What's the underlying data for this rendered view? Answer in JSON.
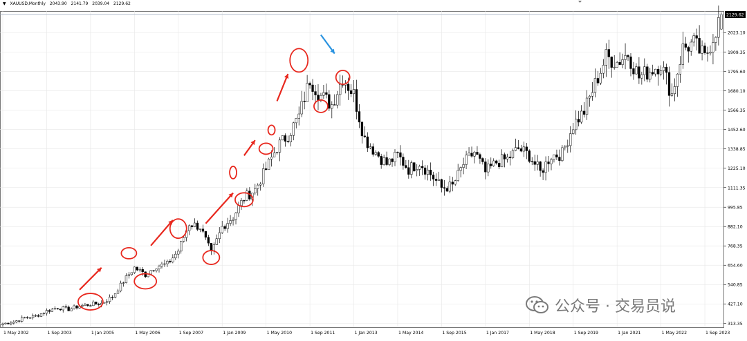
{
  "chart_data": {
    "type": "candlestick",
    "symbol_line": {
      "symbol": "XAUUSD,Monthly",
      "open": "2043.90",
      "high": "2141.79",
      "low": "2039.04",
      "close": "2129.62"
    },
    "current_price_label": "2129.62",
    "y_ticks": [
      "2023.10",
      "1909.35",
      "1795.60",
      "1680.10",
      "1566.35",
      "1452.60",
      "1338.85",
      "1225.10",
      "1111.35",
      "995.85",
      "882.10",
      "768.35",
      "654.60",
      "540.85",
      "427.10",
      "313.35"
    ],
    "x_ticks": [
      "1 May 2002",
      "1 Sep 2003",
      "1 Jan 2005",
      "1 May 2006",
      "1 Sep 2007",
      "1 Jan 2009",
      "1 May 2010",
      "1 Sep 2011",
      "1 Jan 2013",
      "1 May 2014",
      "1 Sep 2015",
      "1 Jan 2017",
      "1 May 2018",
      "1 Sep 2019",
      "1 Jan 2021",
      "1 May 2022",
      "1 Sep 2023"
    ],
    "ylim": [
      290,
      2160
    ],
    "grid": true,
    "series": [
      {
        "x": "2002-05",
        "close": 310
      },
      {
        "x": "2002-09",
        "close": 322
      },
      {
        "x": "2003-01",
        "close": 345
      },
      {
        "x": "2003-05",
        "close": 355
      },
      {
        "x": "2003-09",
        "close": 385
      },
      {
        "x": "2004-01",
        "close": 405
      },
      {
        "x": "2004-05",
        "close": 395
      },
      {
        "x": "2004-09",
        "close": 415
      },
      {
        "x": "2005-01",
        "close": 425
      },
      {
        "x": "2005-05",
        "close": 430
      },
      {
        "x": "2005-09",
        "close": 470
      },
      {
        "x": "2006-01",
        "close": 560
      },
      {
        "x": "2006-05",
        "close": 640
      },
      {
        "x": "2006-09",
        "close": 600
      },
      {
        "x": "2007-01",
        "close": 650
      },
      {
        "x": "2007-05",
        "close": 660
      },
      {
        "x": "2007-09",
        "close": 740
      },
      {
        "x": "2008-01",
        "close": 900
      },
      {
        "x": "2008-05",
        "close": 880
      },
      {
        "x": "2008-09",
        "close": 720
      },
      {
        "x": "2009-01",
        "close": 880
      },
      {
        "x": "2009-05",
        "close": 940
      },
      {
        "x": "2009-09",
        "close": 1050
      },
      {
        "x": "2010-01",
        "close": 1100
      },
      {
        "x": "2010-05",
        "close": 1220
      },
      {
        "x": "2010-09",
        "close": 1350
      },
      {
        "x": "2011-01",
        "close": 1420
      },
      {
        "x": "2011-05",
        "close": 1530
      },
      {
        "x": "2011-09",
        "close": 1750
      },
      {
        "x": "2012-01",
        "close": 1650
      },
      {
        "x": "2012-05",
        "close": 1600
      },
      {
        "x": "2012-09",
        "close": 1760
      },
      {
        "x": "2013-01",
        "close": 1660
      },
      {
        "x": "2013-05",
        "close": 1400
      },
      {
        "x": "2013-09",
        "close": 1320
      },
      {
        "x": "2014-01",
        "close": 1250
      },
      {
        "x": "2014-05",
        "close": 1300
      },
      {
        "x": "2014-09",
        "close": 1220
      },
      {
        "x": "2015-01",
        "close": 1260
      },
      {
        "x": "2015-05",
        "close": 1190
      },
      {
        "x": "2015-09",
        "close": 1110
      },
      {
        "x": "2016-01",
        "close": 1120
      },
      {
        "x": "2016-05",
        "close": 1250
      },
      {
        "x": "2016-09",
        "close": 1320
      },
      {
        "x": "2017-01",
        "close": 1200
      },
      {
        "x": "2017-05",
        "close": 1260
      },
      {
        "x": "2017-09",
        "close": 1280
      },
      {
        "x": "2018-01",
        "close": 1340
      },
      {
        "x": "2018-05",
        "close": 1300
      },
      {
        "x": "2018-09",
        "close": 1200
      },
      {
        "x": "2019-01",
        "close": 1300
      },
      {
        "x": "2019-05",
        "close": 1310
      },
      {
        "x": "2019-09",
        "close": 1480
      },
      {
        "x": "2020-01",
        "close": 1560
      },
      {
        "x": "2020-05",
        "close": 1720
      },
      {
        "x": "2020-09",
        "close": 1880
      },
      {
        "x": "2021-01",
        "close": 1850
      },
      {
        "x": "2021-05",
        "close": 1900
      },
      {
        "x": "2021-09",
        "close": 1760
      },
      {
        "x": "2022-01",
        "close": 1800
      },
      {
        "x": "2022-05",
        "close": 1840
      },
      {
        "x": "2022-09",
        "close": 1660
      },
      {
        "x": "2023-01",
        "close": 1930
      },
      {
        "x": "2023-05",
        "close": 1960
      },
      {
        "x": "2023-09",
        "close": 1870
      },
      {
        "x": "2024-01",
        "close": 2040
      },
      {
        "x": "2024-03",
        "close": 2129.62
      }
    ],
    "colors": {
      "candle": "#000000",
      "grid": "#e6e6e6",
      "annotation_red": "#e8281e",
      "annotation_blue": "#2a93e0"
    }
  },
  "watermark": {
    "text": "公众号 · 交易员说"
  }
}
